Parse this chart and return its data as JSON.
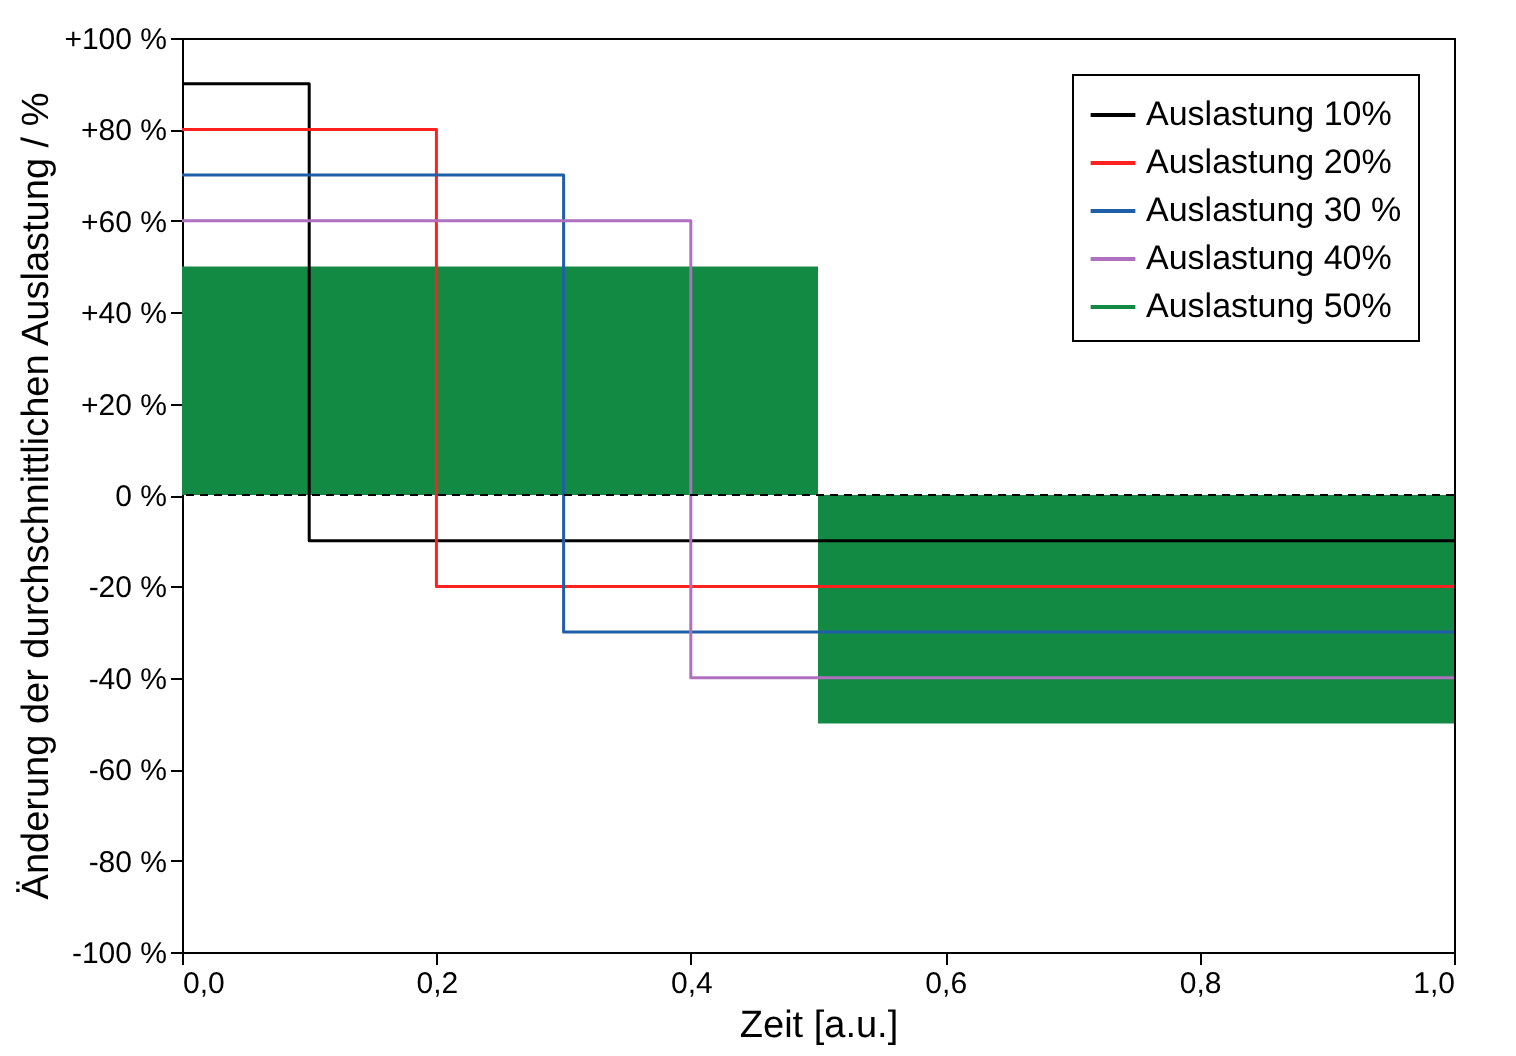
{
  "chart_data": {
    "type": "step",
    "xlabel": "Zeit [a.u.]",
    "ylabel": "Änderung der durchschnittlichen Auslastung / %",
    "xlim": [
      0,
      1
    ],
    "xticks": [
      {
        "value": 0,
        "label": "0,0"
      },
      {
        "value": 0.2,
        "label": "0,2"
      },
      {
        "value": 0.4,
        "label": "0,4"
      },
      {
        "value": 0.6,
        "label": "0,6"
      },
      {
        "value": 0.8,
        "label": "0,8"
      },
      {
        "value": 1,
        "label": "1,0"
      }
    ],
    "ylim": [
      -100,
      100
    ],
    "yticks": [
      {
        "value": -100,
        "label": "-100 %"
      },
      {
        "value": -80,
        "label": "-80 %"
      },
      {
        "value": -60,
        "label": "-60 %"
      },
      {
        "value": -40,
        "label": "-40 %"
      },
      {
        "value": -20,
        "label": "-20 %"
      },
      {
        "value": 0,
        "label": "0 %"
      },
      {
        "value": 20,
        "label": "+20 %"
      },
      {
        "value": 40,
        "label": "+40 %"
      },
      {
        "value": 60,
        "label": "+60 %"
      },
      {
        "value": 80,
        "label": "+80 %"
      },
      {
        "value": 100,
        "label": "+100 %"
      }
    ],
    "series": [
      {
        "name": "Auslastung 10%",
        "color": "#000000",
        "x": [
          0,
          0.1,
          1
        ],
        "values": [
          90,
          -10,
          -10
        ]
      },
      {
        "name": "Auslastung 20%",
        "color": "#ff2020",
        "x": [
          0,
          0.2,
          1
        ],
        "values": [
          80,
          -20,
          -20
        ]
      },
      {
        "name": "Auslastung 30 %",
        "color": "#1f5fa8",
        "x": [
          0,
          0.3,
          1
        ],
        "values": [
          70,
          -30,
          -30
        ]
      },
      {
        "name": "Auslastung 40%",
        "color": "#b070c0",
        "x": [
          0,
          0.4,
          1
        ],
        "values": [
          60,
          -40,
          -40
        ]
      },
      {
        "name": "Auslastung 50%",
        "color": "#138a43",
        "type": "histogram",
        "bins": [
          0,
          0.5,
          1
        ],
        "values": [
          50,
          -50
        ]
      }
    ],
    "ref_lines": [
      {
        "axis": "y",
        "value": 0,
        "line_style": "dashed",
        "color": "#000000"
      }
    ],
    "legend": "top right",
    "grid": false
  }
}
